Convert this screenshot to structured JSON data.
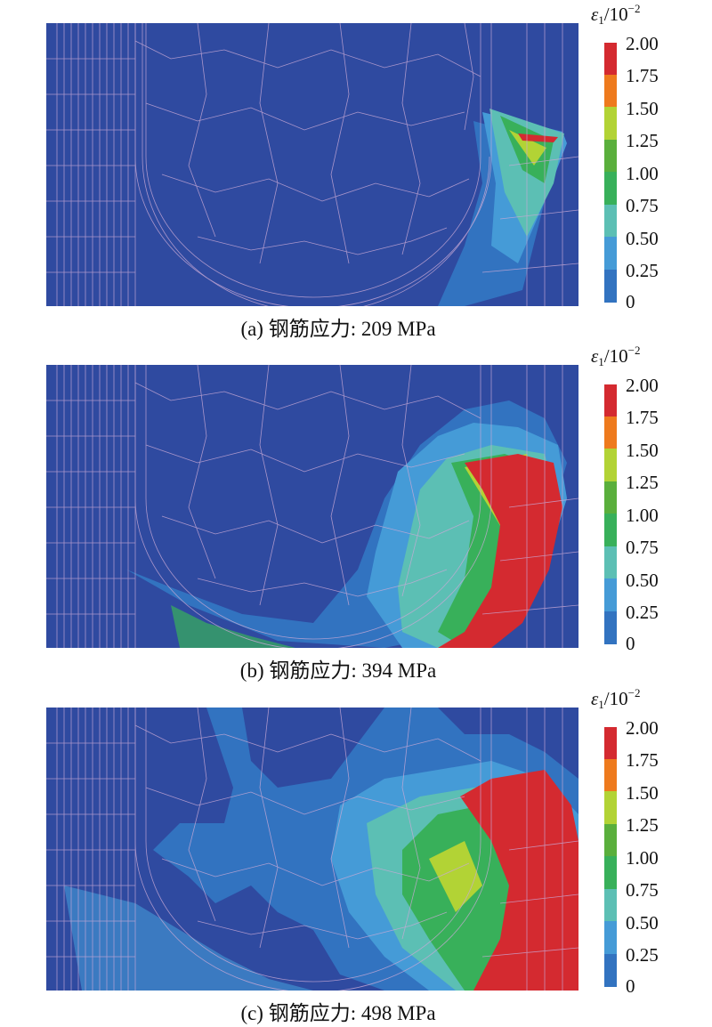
{
  "legend": {
    "symbol": "ε",
    "subscript": "1",
    "slash": "/",
    "base": "10",
    "exponent": "−2",
    "ticks": [
      "2.00",
      "1.75",
      "1.50",
      "1.25",
      "1.00",
      "0.75",
      "0.50",
      "0.25",
      "0"
    ],
    "colors": [
      "#d42a30",
      "#ee7a1d",
      "#b2d335",
      "#5aaf3c",
      "#38b05a",
      "#5cbfb4",
      "#459bd7",
      "#3273c0",
      "#2f4aa0"
    ]
  },
  "mesh_color": "#c9a9d6",
  "panels": [
    {
      "caption": "(a) 钢筋应力: 209 MPa"
    },
    {
      "caption": "(b) 钢筋应力: 394 MPa"
    },
    {
      "caption": "(c) 钢筋应力: 498 MPa"
    }
  ]
}
